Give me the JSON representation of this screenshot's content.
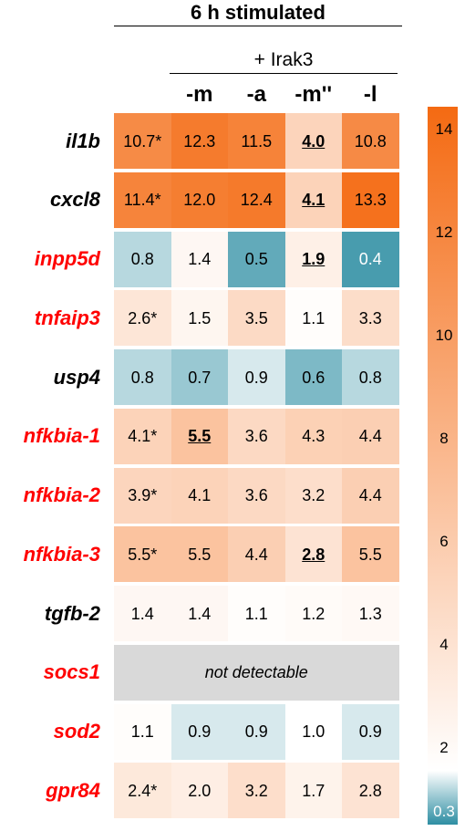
{
  "header": {
    "title": "6 h stimulated",
    "subtitle": "+ Irak3"
  },
  "columns": [
    "",
    "-m",
    "-a",
    "-m''",
    "-l"
  ],
  "rows": [
    {
      "label": "il1b",
      "label_color": "#000000",
      "values": [
        "10.7*",
        "12.3",
        "11.5",
        "4.0",
        "10.8"
      ],
      "bold_underlined": [
        3
      ]
    },
    {
      "label": "cxcl8",
      "label_color": "#000000",
      "values": [
        "11.4*",
        "12.0",
        "12.4",
        "4.1",
        "13.3"
      ],
      "bold_underlined": [
        3
      ]
    },
    {
      "label": "inpp5d",
      "label_color": "#ff0000",
      "values": [
        "0.8",
        "1.4",
        "0.5",
        "1.9",
        "0.4"
      ],
      "bold_underlined": [
        3
      ]
    },
    {
      "label": "tnfaip3",
      "label_color": "#ff0000",
      "values": [
        "2.6*",
        "1.5",
        "3.5",
        "1.1",
        "3.3"
      ],
      "bold_underlined": []
    },
    {
      "label": "usp4",
      "label_color": "#000000",
      "values": [
        "0.8",
        "0.7",
        "0.9",
        "0.6",
        "0.8"
      ],
      "bold_underlined": []
    },
    {
      "label": "nfkbia-1",
      "label_color": "#ff0000",
      "values": [
        "4.1*",
        "5.5",
        "3.6",
        "4.3",
        "4.4"
      ],
      "bold_underlined": [
        1
      ]
    },
    {
      "label": "nfkbia-2",
      "label_color": "#ff0000",
      "values": [
        "3.9*",
        "4.1",
        "3.6",
        "3.2",
        "4.4"
      ],
      "bold_underlined": []
    },
    {
      "label": "nfkbia-3",
      "label_color": "#ff0000",
      "values": [
        "5.5*",
        "5.5",
        "4.4",
        "2.8",
        "5.5"
      ],
      "bold_underlined": [
        3
      ]
    },
    {
      "label": "tgfb-2",
      "label_color": "#000000",
      "values": [
        "1.4",
        "1.4",
        "1.1",
        "1.2",
        "1.3"
      ],
      "bold_underlined": []
    },
    {
      "label": "socs1",
      "label_color": "#ff0000",
      "values": [],
      "not_detectable": "not detectable",
      "bold_underlined": []
    },
    {
      "label": "sod2",
      "label_color": "#ff0000",
      "values": [
        "1.1",
        "0.9",
        "0.9",
        "1.0",
        "0.9"
      ],
      "bold_underlined": []
    },
    {
      "label": "gpr84",
      "label_color": "#ff0000",
      "values": [
        "2.4*",
        "2.0",
        "3.2",
        "1.7",
        "2.8"
      ],
      "bold_underlined": []
    }
  ],
  "colorbar": {
    "ticks": [
      "14",
      "12",
      "10",
      "8",
      "6",
      "4",
      "2",
      "0.3"
    ],
    "low_color": "#2e8ea3",
    "mid_color": "#ffffff",
    "high_color": "#f46a12"
  },
  "chart_data": {
    "type": "heatmap",
    "title": "6 h stimulated",
    "subtitle": "+ Irak3",
    "x_categories": [
      "",
      "-m",
      "-a",
      "-m''",
      "-l"
    ],
    "y_categories": [
      "il1b",
      "cxcl8",
      "inpp5d",
      "tnfaip3",
      "usp4",
      "nfkbia-1",
      "nfkbia-2",
      "nfkbia-3",
      "tgfb-2",
      "socs1",
      "sod2",
      "gpr84"
    ],
    "values": [
      [
        10.7,
        12.3,
        11.5,
        4.0,
        10.8
      ],
      [
        11.4,
        12.0,
        12.4,
        4.1,
        13.3
      ],
      [
        0.8,
        1.4,
        0.5,
        1.9,
        0.4
      ],
      [
        2.6,
        1.5,
        3.5,
        1.1,
        3.3
      ],
      [
        0.8,
        0.7,
        0.9,
        0.6,
        0.8
      ],
      [
        4.1,
        5.5,
        3.6,
        4.3,
        4.4
      ],
      [
        3.9,
        4.1,
        3.6,
        3.2,
        4.4
      ],
      [
        5.5,
        5.5,
        4.4,
        2.8,
        5.5
      ],
      [
        1.4,
        1.4,
        1.1,
        1.2,
        1.3
      ],
      [
        null,
        null,
        null,
        null,
        null
      ],
      [
        1.1,
        0.9,
        0.9,
        1.0,
        0.9
      ],
      [
        2.4,
        2.0,
        3.2,
        1.7,
        2.8
      ]
    ],
    "color_scale": {
      "min": 0.3,
      "mid": 1,
      "max": 14
    }
  }
}
